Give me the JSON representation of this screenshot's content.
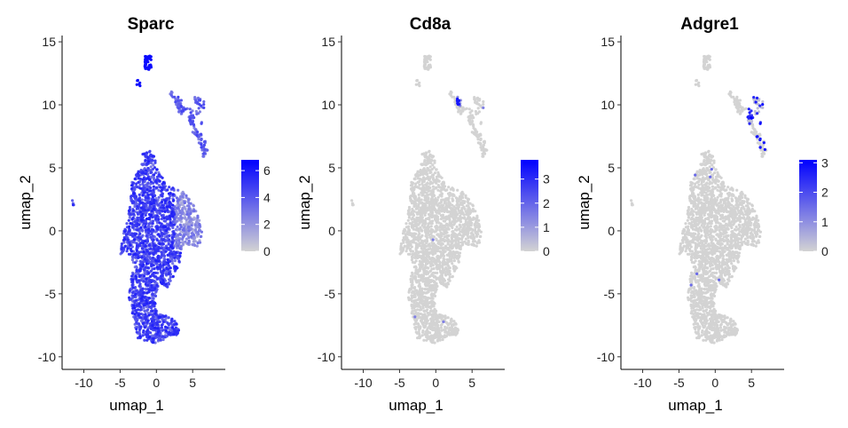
{
  "chart_data": [
    {
      "type": "scatter",
      "title": "Sparc",
      "xlabel": "umap_1",
      "ylabel": "umap_2",
      "xlim": [
        -13,
        9.5
      ],
      "ylim": [
        -11,
        15.5
      ],
      "x_ticks": [
        -10,
        -5,
        0,
        5
      ],
      "y_ticks": [
        -10,
        -5,
        0,
        5,
        10,
        15
      ],
      "color_scale": {
        "low": "#d3d3d3",
        "high": "#0000ff",
        "min": 0,
        "max": 6.8
      },
      "legend_ticks": [
        0,
        2,
        4,
        6
      ],
      "legend_position": "right",
      "expression_pattern": "broad"
    },
    {
      "type": "scatter",
      "title": "Cd8a",
      "xlabel": "umap_1",
      "ylabel": "umap_2",
      "xlim": [
        -13,
        9.5
      ],
      "ylim": [
        -11,
        15.5
      ],
      "x_ticks": [
        -10,
        -5,
        0,
        5
      ],
      "y_ticks": [
        -10,
        -5,
        0,
        5,
        10,
        15
      ],
      "color_scale": {
        "low": "#d3d3d3",
        "high": "#0000ff",
        "min": 0,
        "max": 3.8
      },
      "legend_ticks": [
        0,
        1,
        2,
        3
      ],
      "legend_position": "right",
      "expression_pattern": "sparse-upper-right"
    },
    {
      "type": "scatter",
      "title": "Adgre1",
      "xlabel": "umap_1",
      "ylabel": "umap_2",
      "xlim": [
        -13,
        9.5
      ],
      "ylim": [
        -11,
        15.5
      ],
      "x_ticks": [
        -10,
        -5,
        0,
        5
      ],
      "y_ticks": [
        -10,
        -5,
        0,
        5,
        10,
        15
      ],
      "color_scale": {
        "low": "#d3d3d3",
        "high": "#0000ff",
        "min": 0,
        "max": 3.1
      },
      "legend_ticks": [
        0,
        1,
        2,
        3
      ],
      "legend_position": "right",
      "expression_pattern": "sparse-upper-right-strong"
    }
  ]
}
